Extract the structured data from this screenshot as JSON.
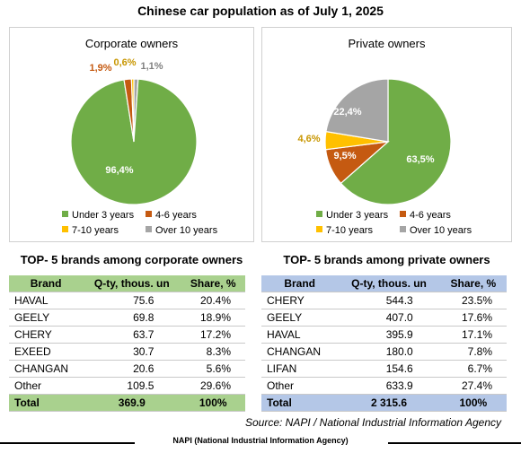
{
  "title": "Chinese car population as of July 1, 2025",
  "colors": {
    "green": "#70ad47",
    "orange": "#c55a11",
    "yellow": "#ffc000",
    "gray": "#a5a5a5",
    "corp_table": "#a9d18e",
    "priv_table": "#b4c7e7"
  },
  "chart_data": [
    {
      "type": "pie",
      "title": "Corporate owners",
      "categories": [
        "Under 3 years",
        "4-6 years",
        "7-10 years",
        "Over 10 years"
      ],
      "values": [
        96.4,
        1.9,
        0.6,
        1.1
      ],
      "labels": [
        "96,4%",
        "1,9%",
        "0,6%",
        "1,1%"
      ],
      "legend": "bottom"
    },
    {
      "type": "pie",
      "title": "Private owners",
      "categories": [
        "Under 3 years",
        "4-6 years",
        "7-10 years",
        "Over 10 years"
      ],
      "values": [
        63.5,
        9.5,
        4.6,
        22.4
      ],
      "labels": [
        "63,5%",
        "9,5%",
        "4,6%",
        "22,4%"
      ],
      "legend": "bottom"
    },
    {
      "type": "table",
      "title": "TOP- 5 brands among corporate owners",
      "columns": [
        "Brand",
        "Q-ty, thous. un",
        "Share, %"
      ],
      "rows": [
        [
          "HAVAL",
          "75.6",
          "20.4%"
        ],
        [
          "GEELY",
          "69.8",
          "18.9%"
        ],
        [
          "CHERY",
          "63.7",
          "17.2%"
        ],
        [
          "EXEED",
          "30.7",
          "8.3%"
        ],
        [
          "CHANGAN",
          "20.6",
          "5.6%"
        ],
        [
          "Other",
          "109.5",
          "29.6%"
        ]
      ],
      "total": [
        "Total",
        "369.9",
        "100%"
      ]
    },
    {
      "type": "table",
      "title": "TOP- 5 brands among private owners",
      "columns": [
        "Brand",
        "Q-ty, thous. un",
        "Share, %"
      ],
      "rows": [
        [
          "CHERY",
          "544.3",
          "23.5%"
        ],
        [
          "GEELY",
          "407.0",
          "17.6%"
        ],
        [
          "HAVAL",
          "395.9",
          "17.1%"
        ],
        [
          "CHANGAN",
          "180.0",
          "7.8%"
        ],
        [
          "LIFAN",
          "154.6",
          "6.7%"
        ],
        [
          "Other",
          "633.9",
          "27.4%"
        ]
      ],
      "total": [
        "Total",
        "2 315.6",
        "100%"
      ]
    }
  ],
  "source": "Source: NAPI / National Industrial Information Agency",
  "footer": "NAPI (National Industrial Information Agency)"
}
